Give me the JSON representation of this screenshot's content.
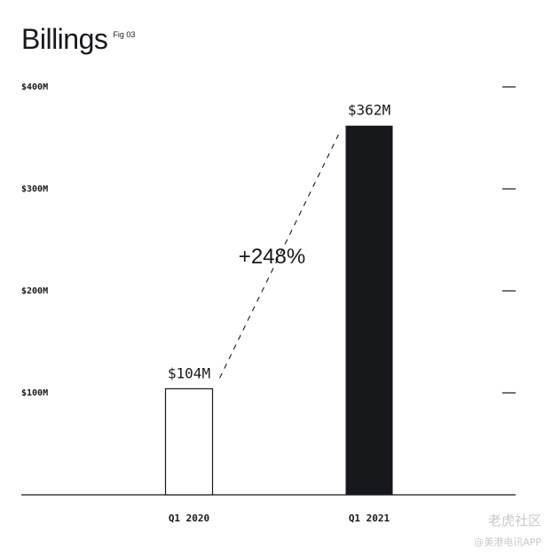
{
  "title": "Billings",
  "fig_label": "Fig 03",
  "watermark": {
    "primary": "老虎社区",
    "secondary": "@美港电讯APP"
  },
  "chart_data": {
    "type": "bar",
    "categories": [
      "Q1 2020",
      "Q1 2021"
    ],
    "values": [
      104,
      362
    ],
    "unit": "M",
    "data_labels": [
      "$104M",
      "$362M"
    ],
    "yticks": [
      100,
      200,
      300,
      400
    ],
    "ytick_labels": [
      "$100M",
      "$200M",
      "$300M",
      "$400M"
    ],
    "ylim": [
      0,
      400
    ],
    "annotation": "+248%",
    "bar_styles": [
      "outline",
      "filled"
    ],
    "colors": {
      "ink": "#17181b",
      "background": "#ffffff"
    },
    "grid": false
  }
}
